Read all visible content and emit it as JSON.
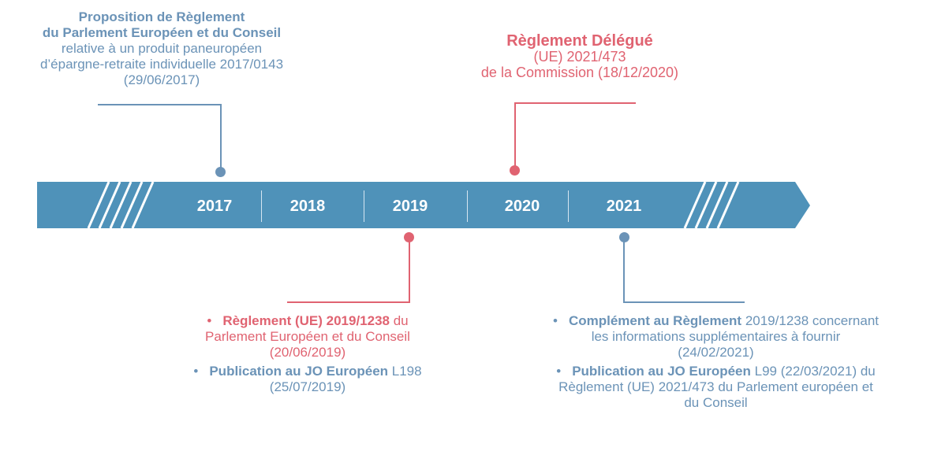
{
  "timeline": {
    "years": [
      "2017",
      "2018",
      "2019",
      "2020",
      "2021"
    ],
    "colors": {
      "bar": "#4f92b9",
      "blue": "#6b93b7",
      "red": "#e06371"
    }
  },
  "event_2017": {
    "line1": "Proposition de Règlement",
    "line2": "du Parlement Européen et du Conseil",
    "line3": "relative à un produit paneuropéen",
    "line4": "d’épargne-retraite individuelle 2017/0143",
    "line5": "(29/06/2017)"
  },
  "event_2020": {
    "line1": "Règlement Délégué",
    "line2": "(UE) 2021/473",
    "line3": "de la Commission (18/12/2020)"
  },
  "event_2019": {
    "bullet": "•",
    "item1_bold": "Règlement (UE) 2019/1238",
    "item1_rest": " du",
    "item1_line2": "Parlement Européen et du Conseil",
    "item1_line3": "(20/06/2019)",
    "item2_bold": "Publication au JO Européen",
    "item2_rest": " L198",
    "item2_line2": "(25/07/2019)"
  },
  "event_2021": {
    "bullet": "•",
    "item1_bold": "Complément au Règlement",
    "item1_rest": " 2019/1238 concernant",
    "item1_line2": "les informations supplémentaires à fournir",
    "item1_line3": "(24/02/2021)",
    "item2_bold": "Publication au JO Européen",
    "item2_rest": " L99 (22/03/2021) du",
    "item2_line2": "Règlement (UE) 2021/473 du Parlement européen et",
    "item2_line3": "du Conseil"
  }
}
